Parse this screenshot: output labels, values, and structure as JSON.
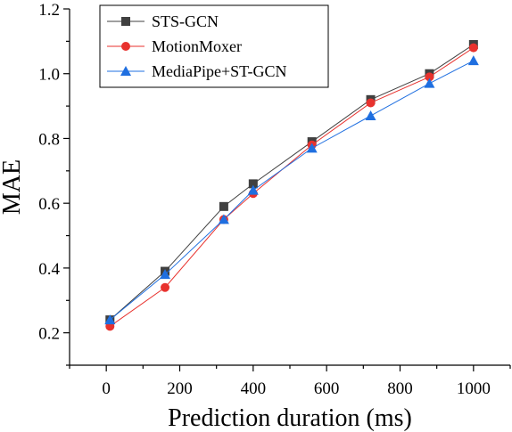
{
  "chart_data": {
    "type": "line",
    "xlabel": "Prediction duration (ms)",
    "ylabel": "MAE",
    "xlim": [
      -100,
      1100
    ],
    "ylim": [
      0.1,
      1.2
    ],
    "xticks": [
      0,
      200,
      400,
      600,
      800,
      1000
    ],
    "yticks": [
      0.2,
      0.4,
      0.6,
      0.8,
      1.0,
      1.2
    ],
    "xtick_labels": [
      "0",
      "200",
      "400",
      "600",
      "800",
      "1000"
    ],
    "ytick_labels": [
      "0.2",
      "0.4",
      "0.6",
      "0.8",
      "1.0",
      "1.2"
    ],
    "legend_position": "top-left",
    "grid": false,
    "series": [
      {
        "name": "STS-GCN",
        "color": "#404040",
        "marker": "square",
        "x": [
          10,
          160,
          320,
          400,
          560,
          720,
          880,
          1000
        ],
        "values": [
          0.24,
          0.39,
          0.59,
          0.66,
          0.79,
          0.92,
          1.0,
          1.09
        ]
      },
      {
        "name": "MotionMoxer",
        "color": "#e8322e",
        "marker": "circle",
        "x": [
          10,
          160,
          320,
          400,
          560,
          720,
          880,
          1000
        ],
        "values": [
          0.22,
          0.34,
          0.55,
          0.63,
          0.78,
          0.91,
          0.99,
          1.08
        ]
      },
      {
        "name": "MediaPipe+ST-GCN",
        "color": "#1f6fe0",
        "marker": "triangle",
        "x": [
          10,
          160,
          320,
          400,
          560,
          720,
          880,
          1000
        ],
        "values": [
          0.24,
          0.38,
          0.55,
          0.64,
          0.77,
          0.87,
          0.97,
          1.04
        ]
      }
    ]
  }
}
